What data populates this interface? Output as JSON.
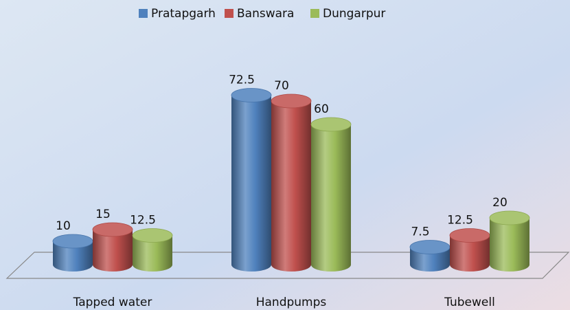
{
  "chart_data": {
    "type": "bar",
    "categories": [
      "Tapped water",
      "Handpumps",
      "Tubewell"
    ],
    "series": [
      {
        "name": "Pratapgarh",
        "color": "#4f81bd",
        "values": [
          10,
          72.5,
          7.5
        ]
      },
      {
        "name": "Banswara",
        "color": "#c0504d",
        "values": [
          15,
          70,
          12.5
        ]
      },
      {
        "name": "Dungarpur",
        "color": "#9bbb59",
        "values": [
          12.5,
          60,
          20
        ]
      }
    ]
  }
}
